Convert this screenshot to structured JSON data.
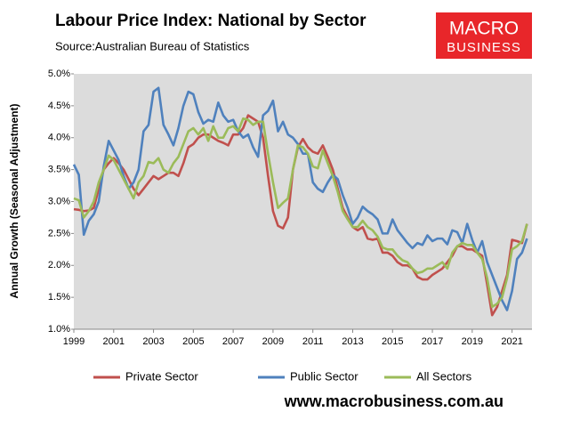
{
  "chart_data": {
    "type": "line",
    "title": "Labour Price Index: National by Sector",
    "subtitle": "Source:Australian Bureau of Statistics",
    "logo": [
      "MACRO",
      "BUSINESS"
    ],
    "footer": "www.macrobusiness.com.au",
    "ylabel": "Annual Growth (Seasonal Adjustment)",
    "x": [
      1999,
      1999.25,
      1999.5,
      1999.75,
      2000,
      2000.25,
      2000.5,
      2000.75,
      2001,
      2001.25,
      2001.5,
      2001.75,
      2002,
      2002.25,
      2002.5,
      2002.75,
      2003,
      2003.25,
      2003.5,
      2003.75,
      2004,
      2004.25,
      2004.5,
      2004.75,
      2005,
      2005.25,
      2005.5,
      2005.75,
      2006,
      2006.25,
      2006.5,
      2006.75,
      2007,
      2007.25,
      2007.5,
      2007.75,
      2008,
      2008.25,
      2008.5,
      2008.75,
      2009,
      2009.25,
      2009.5,
      2009.75,
      2010,
      2010.25,
      2010.5,
      2010.75,
      2011,
      2011.25,
      2011.5,
      2011.75,
      2012,
      2012.25,
      2012.5,
      2012.75,
      2013,
      2013.25,
      2013.5,
      2013.75,
      2014,
      2014.25,
      2014.5,
      2014.75,
      2015,
      2015.25,
      2015.5,
      2015.75,
      2016,
      2016.25,
      2016.5,
      2016.75,
      2017,
      2017.25,
      2017.5,
      2017.75,
      2018,
      2018.25,
      2018.5,
      2018.75,
      2019,
      2019.25,
      2019.5,
      2019.75,
      2020,
      2020.25,
      2020.5,
      2020.75,
      2021,
      2021.25,
      2021.5,
      2021.75
    ],
    "series": [
      {
        "name": "Private Sector",
        "color": "#c0504d",
        "values": [
          2.88,
          2.87,
          2.85,
          2.86,
          2.9,
          3.2,
          3.5,
          3.6,
          3.68,
          3.6,
          3.5,
          3.35,
          3.2,
          3.1,
          3.2,
          3.3,
          3.4,
          3.35,
          3.4,
          3.45,
          3.45,
          3.4,
          3.6,
          3.85,
          3.9,
          4.0,
          4.05,
          4.05,
          4.0,
          3.95,
          3.92,
          3.88,
          4.05,
          4.05,
          4.15,
          4.35,
          4.3,
          4.25,
          4.0,
          3.4,
          2.85,
          2.62,
          2.58,
          2.75,
          3.5,
          3.85,
          3.98,
          3.85,
          3.78,
          3.75,
          3.88,
          3.7,
          3.5,
          3.2,
          2.9,
          2.75,
          2.6,
          2.55,
          2.6,
          2.42,
          2.4,
          2.42,
          2.2,
          2.2,
          2.15,
          2.05,
          2.0,
          2.0,
          1.95,
          1.82,
          1.78,
          1.78,
          1.85,
          1.9,
          1.95,
          2.05,
          2.15,
          2.3,
          2.3,
          2.25,
          2.25,
          2.2,
          2.15,
          1.7,
          1.22,
          1.35,
          1.6,
          1.85,
          2.4,
          2.38,
          2.35,
          2.65
        ]
      },
      {
        "name": "Public Sector",
        "color": "#4f81bd",
        "values": [
          3.58,
          3.42,
          2.48,
          2.7,
          2.8,
          3.0,
          3.55,
          3.95,
          3.8,
          3.65,
          3.4,
          3.2,
          3.3,
          3.5,
          4.1,
          4.2,
          4.72,
          4.78,
          4.2,
          4.05,
          3.88,
          4.15,
          4.5,
          4.72,
          4.68,
          4.4,
          4.22,
          4.28,
          4.25,
          4.55,
          4.35,
          4.25,
          4.28,
          4.1,
          4.0,
          4.05,
          3.85,
          3.7,
          4.35,
          4.42,
          4.58,
          4.1,
          4.25,
          4.05,
          4.0,
          3.9,
          3.75,
          3.75,
          3.3,
          3.2,
          3.15,
          3.3,
          3.42,
          3.35,
          3.1,
          2.9,
          2.65,
          2.75,
          2.92,
          2.85,
          2.8,
          2.72,
          2.5,
          2.5,
          2.72,
          2.55,
          2.45,
          2.35,
          2.27,
          2.35,
          2.32,
          2.47,
          2.38,
          2.42,
          2.42,
          2.33,
          2.55,
          2.52,
          2.35,
          2.65,
          2.4,
          2.2,
          2.38,
          2.05,
          1.85,
          1.65,
          1.45,
          1.3,
          1.6,
          2.1,
          2.2,
          2.42
        ]
      },
      {
        "name": "All Sectors",
        "color": "#9bbb59",
        "values": [
          3.05,
          3.02,
          2.75,
          2.85,
          3.0,
          3.3,
          3.5,
          3.72,
          3.65,
          3.5,
          3.35,
          3.2,
          3.05,
          3.3,
          3.4,
          3.62,
          3.6,
          3.68,
          3.5,
          3.45,
          3.6,
          3.7,
          3.9,
          4.1,
          4.15,
          4.05,
          4.15,
          3.95,
          4.18,
          4.0,
          4.0,
          4.15,
          4.18,
          4.1,
          4.3,
          4.28,
          4.2,
          4.25,
          4.25,
          3.75,
          3.3,
          2.9,
          2.98,
          3.05,
          3.5,
          3.88,
          3.85,
          3.75,
          3.55,
          3.52,
          3.8,
          3.6,
          3.4,
          3.15,
          2.85,
          2.72,
          2.6,
          2.6,
          2.7,
          2.6,
          2.55,
          2.45,
          2.28,
          2.25,
          2.25,
          2.15,
          2.08,
          2.05,
          1.95,
          1.88,
          1.9,
          1.95,
          1.95,
          2.0,
          2.05,
          1.95,
          2.2,
          2.3,
          2.35,
          2.32,
          2.32,
          2.2,
          2.1,
          1.8,
          1.35,
          1.4,
          1.5,
          1.8,
          2.25,
          2.3,
          2.38,
          2.65
        ]
      }
    ],
    "xlim": [
      1999,
      2022
    ],
    "xticks": [
      1999,
      2001,
      2003,
      2005,
      2007,
      2009,
      2011,
      2013,
      2015,
      2017,
      2019,
      2021
    ],
    "ylim": [
      1,
      5
    ],
    "yticks": [
      {
        "value": 1,
        "label": "1.0%"
      },
      {
        "value": 1.5,
        "label": "1.5%"
      },
      {
        "value": 2,
        "label": "2.0%"
      },
      {
        "value": 2.5,
        "label": "2.5%"
      },
      {
        "value": 3,
        "label": "3.0%"
      },
      {
        "value": 3.5,
        "label": "3.5%"
      },
      {
        "value": 4,
        "label": "4.0%"
      },
      {
        "value": 4.5,
        "label": "4.5%"
      },
      {
        "value": 5,
        "label": "5.0%"
      }
    ],
    "legend": "bottom"
  }
}
